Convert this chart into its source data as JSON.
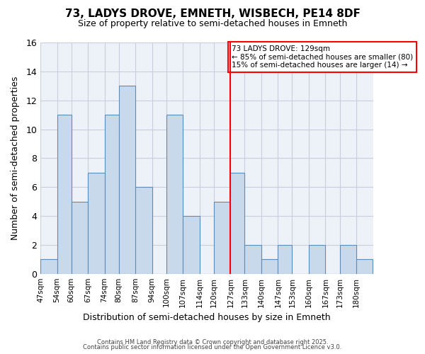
{
  "title": "73, LADYS DROVE, EMNETH, WISBECH, PE14 8DF",
  "subtitle": "Size of property relative to semi-detached houses in Emneth",
  "xlabel": "Distribution of semi-detached houses by size in Emneth",
  "ylabel": "Number of semi-detached properties",
  "bin_labels": [
    "47sqm",
    "54sqm",
    "60sqm",
    "67sqm",
    "74sqm",
    "80sqm",
    "87sqm",
    "94sqm",
    "100sqm",
    "107sqm",
    "114sqm",
    "120sqm",
    "127sqm",
    "133sqm",
    "140sqm",
    "147sqm",
    "153sqm",
    "160sqm",
    "167sqm",
    "173sqm",
    "180sqm"
  ],
  "bin_edges": [
    47,
    54,
    60,
    67,
    74,
    80,
    87,
    94,
    100,
    107,
    114,
    120,
    127,
    133,
    140,
    147,
    153,
    160,
    167,
    173,
    180,
    187
  ],
  "counts": [
    1,
    11,
    5,
    7,
    11,
    13,
    6,
    0,
    11,
    4,
    0,
    5,
    7,
    2,
    1,
    2,
    0,
    2,
    0,
    2,
    1
  ],
  "bar_color": "#c9d9ec",
  "bar_edge_color": "#5b8db8",
  "grid_color": "#c8d0de",
  "background_color": "#edf1f8",
  "vline_x": 127,
  "vline_color": "red",
  "ylim": [
    0,
    16
  ],
  "yticks": [
    0,
    2,
    4,
    6,
    8,
    10,
    12,
    14,
    16
  ],
  "annotation_title": "73 LADYS DROVE: 129sqm",
  "annotation_line1": "← 85% of semi-detached houses are smaller (80)",
  "annotation_line2": "15% of semi-detached houses are larger (14) →",
  "footer1": "Contains HM Land Registry data © Crown copyright and database right 2025.",
  "footer2": "Contains public sector information licensed under the Open Government Licence v3.0."
}
